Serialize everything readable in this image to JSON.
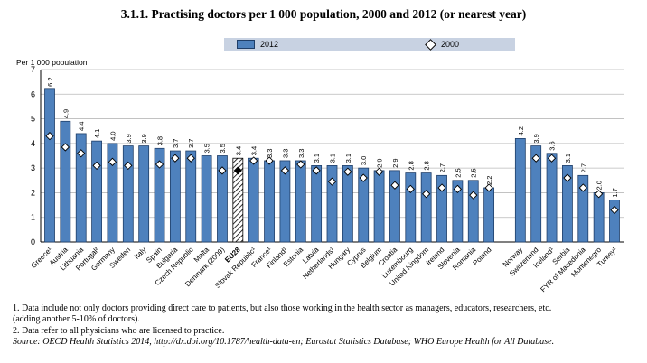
{
  "title": "3.1.1. Practising doctors per 1 000 population, 2000 and 2012 (or nearest year)",
  "legend": {
    "bar_label": "2012",
    "marker_label": "2000"
  },
  "notes": [
    "1.  Data include not only doctors providing direct care to patients, but also those working in the health sector as managers, educators, researchers, etc.",
    "     (adding another 5-10% of doctors).",
    "2.  Data refer to all physicians who are licensed to practice."
  ],
  "source": "Source: OECD Health Statistics 2014, http://dx.doi.org/10.1787/health-data-en; Eurostat Statistics Database; WHO Europe Health for All Database.",
  "colors": {
    "bar": "#4e81bd",
    "bar_edge": "#1f3e68",
    "legend_bg": "#c8d2e2",
    "grid": "#b9b9b9"
  },
  "chart_data": {
    "type": "bar",
    "title": "3.1.1. Practising doctors per 1 000 population, 2000 and 2012 (or nearest year)",
    "ylabel": "Per 1 000 population",
    "xlabel": "",
    "ylim": [
      0,
      7
    ],
    "yticks": [
      0,
      1,
      2,
      3,
      4,
      5,
      6,
      7
    ],
    "grid": "horizontal",
    "legend_position": "top",
    "categories": [
      "Greece¹",
      "Austria",
      "Lithuania",
      "Portugal²",
      "Germany",
      "Sweden",
      "Italy",
      "Spain",
      "Bulgaria",
      "Czech Republic",
      "Malta",
      "Denmark (2009)",
      "EU28",
      "Slovak Republic¹",
      "France¹",
      "Finland¹",
      "Estonia",
      "Latvia",
      "Netherlands¹",
      "Hungary",
      "Cyprus",
      "Belgium",
      "Croatia",
      "Luxembourg",
      "United Kingdom",
      "Ireland",
      "Slovenia",
      "Romania",
      "Poland",
      "Norway",
      "Switzerland",
      "Iceland¹",
      "Serbia",
      "FYR of Macedonia",
      "Montenegro",
      "Turkey¹"
    ],
    "group_breaks": [
      29
    ],
    "highlight_category": "EU28",
    "series": [
      {
        "name": "2012",
        "type": "bar",
        "values": [
          6.2,
          4.9,
          4.4,
          4.1,
          4.0,
          3.9,
          3.9,
          3.8,
          3.7,
          3.7,
          3.5,
          3.5,
          3.4,
          3.4,
          3.3,
          3.3,
          3.3,
          3.1,
          3.1,
          3.1,
          3.0,
          2.9,
          2.9,
          2.8,
          2.8,
          2.7,
          2.5,
          2.5,
          2.2,
          4.2,
          3.9,
          3.6,
          3.1,
          2.7,
          2.0,
          1.7
        ]
      },
      {
        "name": "2000",
        "type": "marker",
        "values": [
          4.3,
          3.85,
          3.6,
          3.1,
          3.25,
          3.1,
          null,
          3.15,
          3.4,
          3.4,
          null,
          2.9,
          2.9,
          3.3,
          3.3,
          2.9,
          3.15,
          2.9,
          2.45,
          2.85,
          2.6,
          2.85,
          2.3,
          2.15,
          1.95,
          2.2,
          2.15,
          1.9,
          2.2,
          null,
          3.4,
          3.4,
          2.6,
          2.2,
          1.95,
          1.3
        ]
      }
    ]
  }
}
